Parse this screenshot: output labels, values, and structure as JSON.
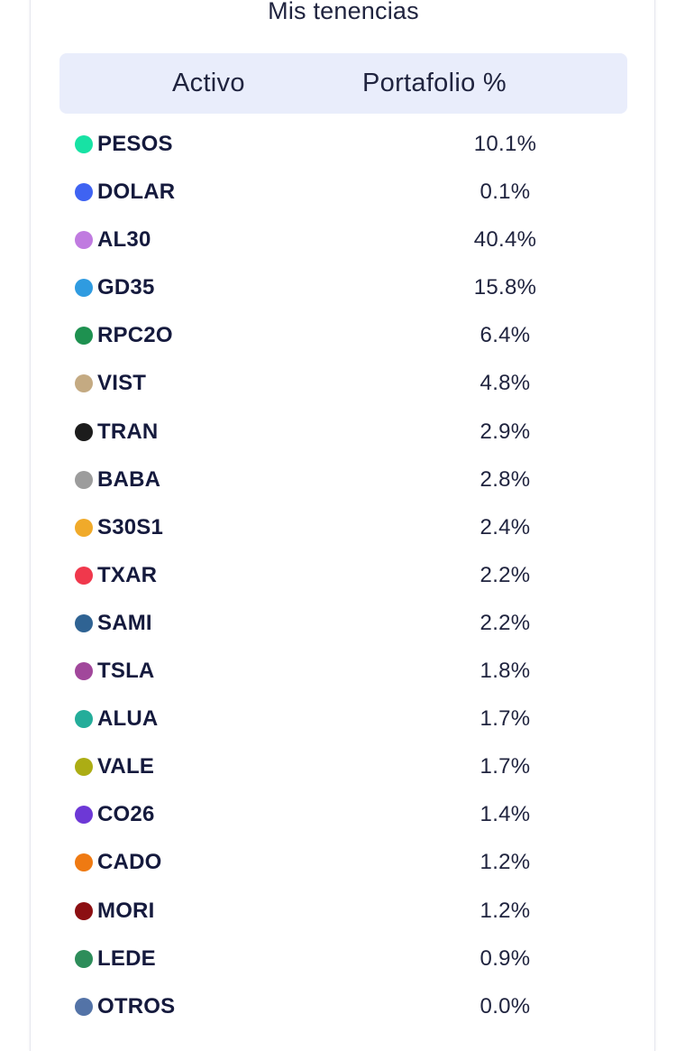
{
  "title": "Mis tenencias",
  "table": {
    "headers": {
      "asset": "Activo",
      "portfolio": "Portafolio %"
    },
    "rows": [
      {
        "ticker": "PESOS",
        "pct": "10.1%",
        "color": "#17e2a4"
      },
      {
        "ticker": "DOLAR",
        "pct": "0.1%",
        "color": "#3f63f2"
      },
      {
        "ticker": "AL30",
        "pct": "40.4%",
        "color": "#c07be0"
      },
      {
        "ticker": "GD35",
        "pct": "15.8%",
        "color": "#2f9be0"
      },
      {
        "ticker": "RPC2O",
        "pct": "6.4%",
        "color": "#1e9150"
      },
      {
        "ticker": "VIST",
        "pct": "4.8%",
        "color": "#c4aa82"
      },
      {
        "ticker": "TRAN",
        "pct": "2.9%",
        "color": "#1c1c1c"
      },
      {
        "ticker": "BABA",
        "pct": "2.8%",
        "color": "#9c9c9c"
      },
      {
        "ticker": "S30S1",
        "pct": "2.4%",
        "color": "#f0aa2a"
      },
      {
        "ticker": "TXAR",
        "pct": "2.2%",
        "color": "#f0384c"
      },
      {
        "ticker": "SAMI",
        "pct": "2.2%",
        "color": "#2f6393"
      },
      {
        "ticker": "TSLA",
        "pct": "1.8%",
        "color": "#a1479b"
      },
      {
        "ticker": "ALUA",
        "pct": "1.7%",
        "color": "#24ad9a"
      },
      {
        "ticker": "VALE",
        "pct": "1.7%",
        "color": "#acad14"
      },
      {
        "ticker": "CO26",
        "pct": "1.4%",
        "color": "#6d38d6"
      },
      {
        "ticker": "CADO",
        "pct": "1.2%",
        "color": "#ef7a12"
      },
      {
        "ticker": "MORI",
        "pct": "1.2%",
        "color": "#8c0f12"
      },
      {
        "ticker": "LEDE",
        "pct": "0.9%",
        "color": "#2d8d5a"
      },
      {
        "ticker": "OTROS",
        "pct": "0.0%",
        "color": "#5373a7"
      }
    ]
  }
}
